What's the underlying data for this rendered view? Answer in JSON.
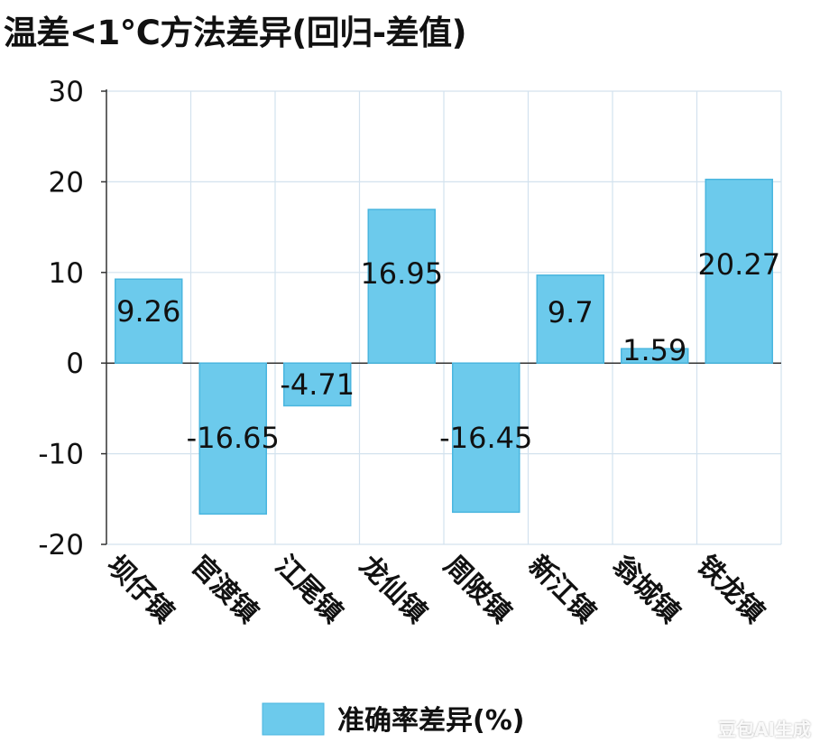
{
  "chart_data": {
    "type": "bar",
    "title": "温差<1°C方法差异(回归-差值)",
    "categories": [
      "坝仔镇",
      "官渡镇",
      "江尾镇",
      "龙仙镇",
      "周陂镇",
      "新江镇",
      "翁城镇",
      "铁龙镇"
    ],
    "series": [
      {
        "name": "准确率差异(%)",
        "values": [
          9.26,
          -16.65,
          -4.71,
          16.95,
          -16.45,
          9.7,
          1.59,
          20.27
        ],
        "data_labels": [
          "9.26",
          "-16.65",
          "-4.71",
          "16.95",
          "-16.45",
          "9.7",
          "1.59",
          "20.27"
        ],
        "color": "#6ccaec"
      }
    ],
    "xlabel": "",
    "ylabel": "",
    "ylim": [
      -20,
      30
    ],
    "yticks": [
      30,
      20,
      10,
      0,
      -10,
      -20
    ],
    "ytick_labels": [
      "30",
      "20",
      "10",
      "0",
      "-10",
      "-20"
    ],
    "grid": true,
    "legend": "bottom-center",
    "colors": {
      "bar_fill": "#6ccaec",
      "bar_stroke": "#4ab6df",
      "grid": "#d3e2ee",
      "axis": "#333333",
      "text": "#111111"
    }
  },
  "watermark": "豆包AI生成"
}
